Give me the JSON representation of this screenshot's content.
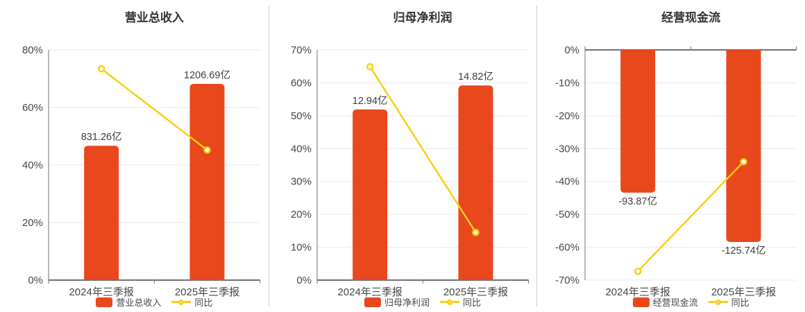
{
  "colors": {
    "bar": "#e8481c",
    "line": "#f9cf13",
    "grid": "#e4eaf4",
    "axis": "#6e7079",
    "tick_text": "#464646",
    "value_text": "#3d3d3d",
    "title_text": "#333333",
    "divider": "#cccccc",
    "background": "#ffffff"
  },
  "chart_data": [
    {
      "type": "bar",
      "title": "营业总收入",
      "categories": [
        "2024年三季报",
        "2025年三季报"
      ],
      "series": [
        {
          "name": "营业总收入",
          "type": "bar",
          "unit": "亿",
          "values": [
            831.26,
            1206.69
          ],
          "labels": [
            "831.26亿",
            "1206.69亿"
          ],
          "plotted_pct": [
            46.7,
            68.2
          ]
        },
        {
          "name": "同比",
          "type": "line",
          "values_pct": [
            73.4,
            45.2
          ]
        }
      ],
      "y_axis": {
        "min": 0,
        "max": 80,
        "tick_step": 20,
        "tick_values": [
          80,
          60,
          40,
          20,
          0
        ],
        "tick_labels": [
          "80%",
          "60%",
          "40%",
          "20%",
          "0%"
        ]
      },
      "legend": {
        "position": "bottom",
        "items": [
          "营业总收入",
          "同比"
        ]
      },
      "grid": true
    },
    {
      "type": "bar",
      "title": "归母净利润",
      "categories": [
        "2024年三季报",
        "2025年三季报"
      ],
      "series": [
        {
          "name": "归母净利润",
          "type": "bar",
          "unit": "亿",
          "values": [
            12.94,
            14.82
          ],
          "labels": [
            "12.94亿",
            "14.82亿"
          ],
          "plotted_pct": [
            51.9,
            59.2
          ]
        },
        {
          "name": "同比",
          "type": "line",
          "values_pct": [
            64.9,
            14.5
          ]
        }
      ],
      "y_axis": {
        "min": 0,
        "max": 70,
        "tick_step": 10,
        "tick_values": [
          70,
          60,
          50,
          40,
          30,
          20,
          10,
          0
        ],
        "tick_labels": [
          "70%",
          "60%",
          "50%",
          "40%",
          "30%",
          "20%",
          "10%",
          "0%"
        ]
      },
      "legend": {
        "position": "bottom",
        "items": [
          "归母净利润",
          "同比"
        ]
      },
      "grid": true
    },
    {
      "type": "bar",
      "title": "经营现金流",
      "categories": [
        "2024年三季报",
        "2025年三季报"
      ],
      "series": [
        {
          "name": "经营现金流",
          "type": "bar",
          "unit": "亿",
          "values": [
            -93.87,
            -125.74
          ],
          "labels": [
            "-93.87亿",
            "-125.74亿"
          ],
          "plotted_pct": [
            -43.4,
            -58.4
          ]
        },
        {
          "name": "同比",
          "type": "line",
          "values_pct": [
            -67.3,
            -34.0
          ]
        }
      ],
      "y_axis": {
        "min": -70,
        "max": 0,
        "tick_step": 10,
        "tick_values": [
          0,
          -10,
          -20,
          -30,
          -40,
          -50,
          -60,
          -70
        ],
        "tick_labels": [
          "0%",
          "-10%",
          "-20%",
          "-30%",
          "-40%",
          "-50%",
          "-60%",
          "-70%"
        ]
      },
      "legend": {
        "position": "bottom",
        "items": [
          "经营现金流",
          "同比"
        ]
      },
      "grid": true
    }
  ]
}
